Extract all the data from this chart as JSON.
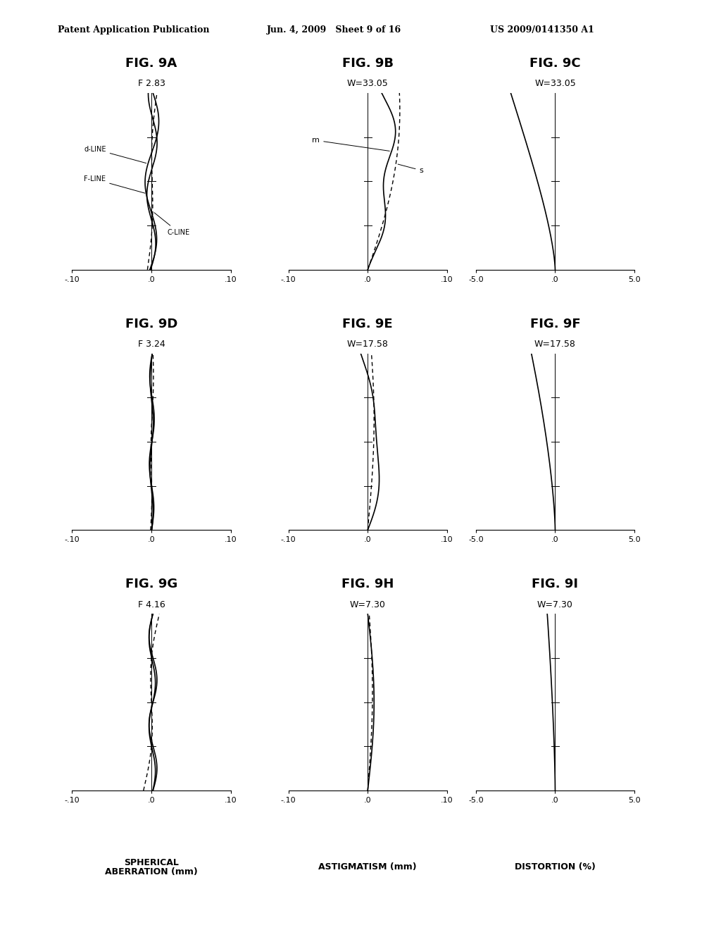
{
  "header_left": "Patent Application Publication",
  "header_mid": "Jun. 4, 2009   Sheet 9 of 16",
  "header_right": "US 2009/0141350 A1",
  "figures": [
    {
      "name": "FIG. 9A",
      "subtitle": "F 2.83",
      "type": "spherical"
    },
    {
      "name": "FIG. 9B",
      "subtitle": "W=33.05",
      "type": "astigmatism"
    },
    {
      "name": "FIG. 9C",
      "subtitle": "W=33.05",
      "type": "distortion"
    },
    {
      "name": "FIG. 9D",
      "subtitle": "F 3.24",
      "type": "spherical"
    },
    {
      "name": "FIG. 9E",
      "subtitle": "W=17.58",
      "type": "astigmatism"
    },
    {
      "name": "FIG. 9F",
      "subtitle": "W=17.58",
      "type": "distortion"
    },
    {
      "name": "FIG. 9G",
      "subtitle": "F 4.16",
      "type": "spherical"
    },
    {
      "name": "FIG. 9H",
      "subtitle": "W=7.30",
      "type": "astigmatism"
    },
    {
      "name": "FIG. 9I",
      "subtitle": "W=7.30",
      "type": "distortion"
    }
  ],
  "col_labels": [
    "SPHERICAL\nABERRATION (mm)",
    "ASTIGMATISM (mm)",
    "DISTORTION (%)"
  ],
  "background_color": "#ffffff"
}
